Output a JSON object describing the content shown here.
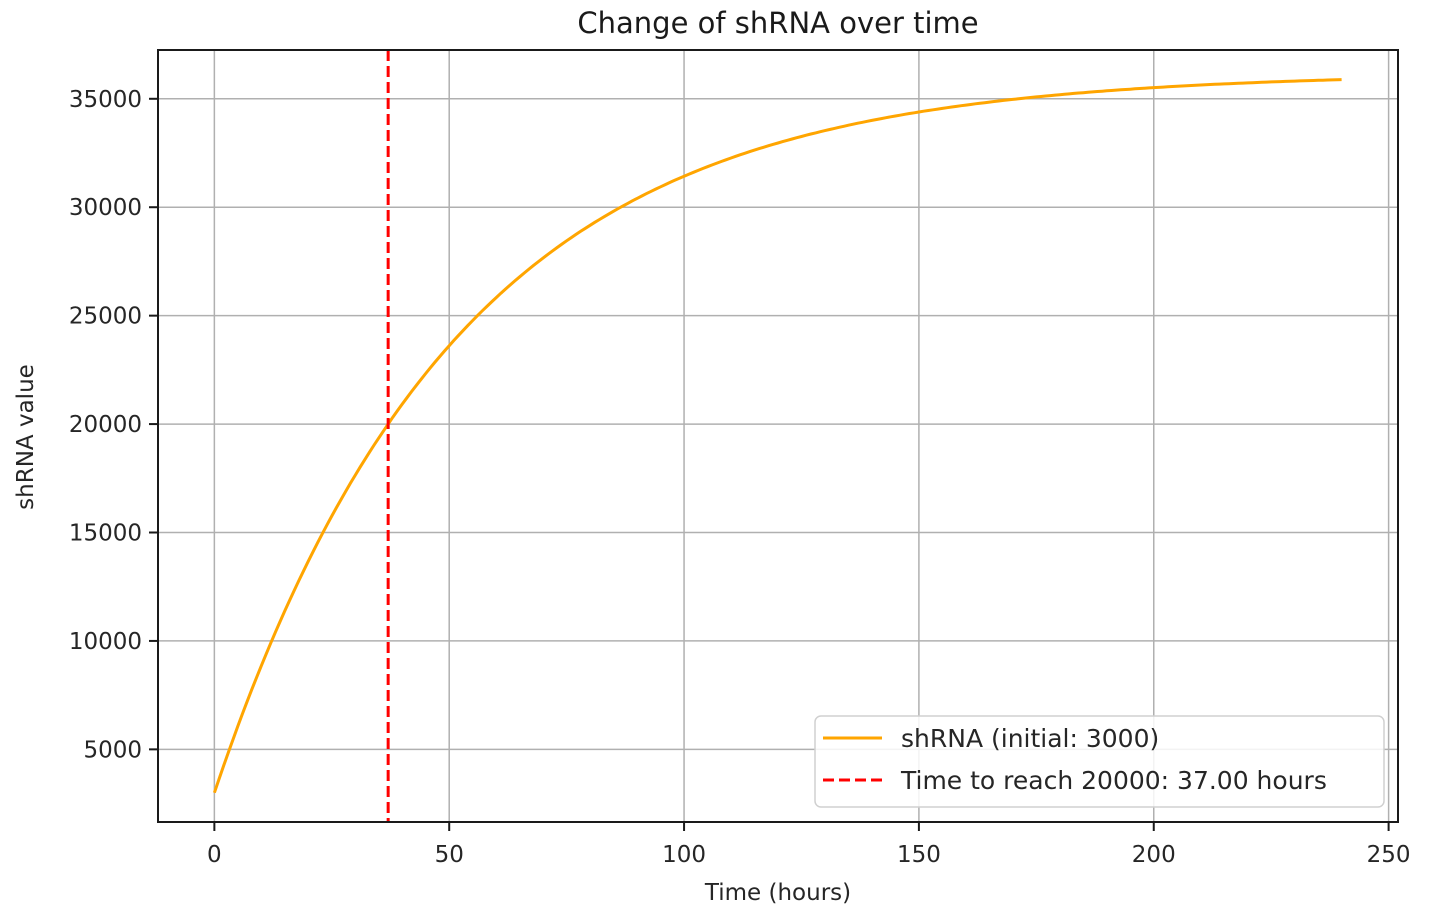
{
  "chart_data": {
    "type": "line",
    "title": "Change of shRNA over time",
    "xlabel": "Time (hours)",
    "ylabel": "shRNA value",
    "xlim": [
      -12,
      252
    ],
    "ylim": [
      1650,
      37250
    ],
    "xticks": [
      0,
      50,
      100,
      150,
      200,
      250
    ],
    "yticks": [
      5000,
      10000,
      15000,
      20000,
      25000,
      30000,
      35000
    ],
    "grid": true,
    "legend_position": "lower right",
    "series": [
      {
        "name": "shRNA (initial: 3000)",
        "color": "#ffa500",
        "style": "solid",
        "x": [
          0,
          5,
          10,
          15,
          20,
          25,
          30,
          37,
          45,
          50,
          60,
          70,
          80,
          90,
          100,
          110,
          120,
          130,
          140,
          150,
          160,
          170,
          180,
          190,
          200,
          210,
          220,
          230,
          240
        ],
        "values": [
          3000,
          6040,
          8780,
          11240,
          13470,
          15480,
          17280,
          20000,
          22140,
          23400,
          25490,
          27200,
          28580,
          29720,
          30620,
          31370,
          31970,
          32460,
          32860,
          33190,
          33460,
          33680,
          33860,
          34010,
          34130,
          34230,
          34310,
          34380,
          34430
        ]
      },
      {
        "name": "Time to reach 20000: 37.00 hours",
        "color": "#ff0000",
        "style": "dashed",
        "type": "vline",
        "x": 37
      }
    ]
  },
  "model": {
    "initial": 3000,
    "capacity": 36200,
    "rate": 0.0194,
    "t_max": 240
  },
  "legend": {
    "items": [
      {
        "label": "shRNA (initial: 3000)",
        "color": "#ffa500",
        "style": "solid"
      },
      {
        "label": "Time to reach 20000: 37.00 hours",
        "color": "#ff0000",
        "style": "dashed"
      }
    ]
  },
  "colors": {
    "line": "#ffa500",
    "threshold": "#ff0000",
    "grid": "#b0b0b0",
    "axes": "#1a1a1a"
  }
}
